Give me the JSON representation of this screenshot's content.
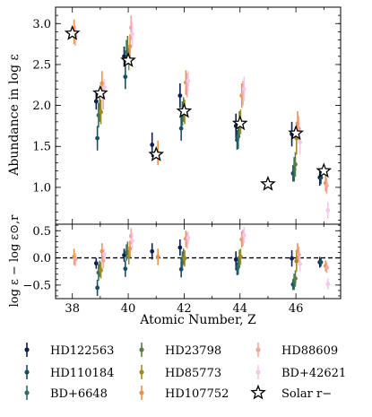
{
  "chart_data": [
    {
      "type": "scatter",
      "panel": "top",
      "xlabel": "",
      "ylabel": "Abundance in log ε",
      "xlim": [
        37.4,
        47.6
      ],
      "ylim": [
        0.55,
        3.2
      ],
      "yticks": [
        1.0,
        1.5,
        2.0,
        2.5,
        3.0
      ],
      "ytick_labels": [
        "1.0",
        "1.5",
        "2.0",
        "2.5",
        "3.0"
      ],
      "series": [
        {
          "name": "HD122563",
          "color": "#0f1f4f",
          "marker": "circle",
          "points": [
            [
              39,
              2.05,
              0.1
            ],
            [
              40,
              2.6,
              0.12
            ],
            [
              41,
              1.52,
              0.15
            ],
            [
              42,
              2.12,
              0.15
            ],
            [
              44,
              1.75,
              0.15
            ],
            [
              46,
              1.65,
              0.15
            ],
            [
              47,
              1.12,
              0.1
            ]
          ]
        },
        {
          "name": "HD110184",
          "color": "#1a4e62",
          "marker": "circle",
          "points": [
            [
              39,
              1.6,
              0.15
            ],
            [
              40,
              2.35,
              0.15
            ],
            [
              42,
              1.72,
              0.15
            ],
            [
              44,
              1.58,
              0.12
            ],
            [
              46,
              1.17,
              0.1
            ],
            [
              47,
              1.12,
              0.08
            ]
          ]
        },
        {
          "name": "BD+6648",
          "color": "#2e6e66",
          "marker": "circle",
          "points": [
            [
              39,
              1.88,
              0.15
            ],
            [
              40,
              2.65,
              0.15
            ],
            [
              42,
              1.9,
              0.15
            ],
            [
              44,
              1.62,
              0.15
            ],
            [
              46,
              1.22,
              0.15
            ]
          ]
        },
        {
          "name": "HD23798",
          "color": "#5e7d40",
          "marker": "circle",
          "points": [
            [
              39,
              1.95,
              0.15
            ],
            [
              40,
              2.7,
              0.15
            ],
            [
              42,
              1.95,
              0.15
            ],
            [
              44,
              1.78,
              0.15
            ],
            [
              46,
              1.28,
              0.15
            ]
          ]
        },
        {
          "name": "HD85773",
          "color": "#a48a1e",
          "marker": "circle",
          "points": [
            [
              39,
              1.92,
              0.15
            ],
            [
              40,
              2.58,
              0.15
            ],
            [
              42,
              1.92,
              0.15
            ],
            [
              44,
              1.8,
              0.15
            ],
            [
              46,
              1.6,
              0.2
            ]
          ]
        },
        {
          "name": "HD107752",
          "color": "#e8944d",
          "marker": "circle",
          "points": [
            [
              38,
              2.9,
              0.15
            ],
            [
              39,
              2.27,
              0.15
            ],
            [
              40,
              2.72,
              0.15
            ],
            [
              41,
              1.42,
              0.15
            ],
            [
              42,
              2.28,
              0.15
            ],
            [
              44,
              2.12,
              0.15
            ],
            [
              46,
              1.78,
              0.15
            ],
            [
              47,
              1.05,
              0.1
            ]
          ]
        },
        {
          "name": "HD88609",
          "color": "#f2a8a0",
          "marker": "circle",
          "points": [
            [
              38,
              2.85,
              0.12
            ],
            [
              39,
              2.1,
              0.15
            ],
            [
              40,
              2.95,
              0.15
            ],
            [
              42,
              2.25,
              0.15
            ],
            [
              44,
              2.15,
              0.15
            ],
            [
              46,
              1.72,
              0.15
            ],
            [
              47,
              1.02,
              0.1
            ]
          ]
        },
        {
          "name": "BD+42621",
          "color": "#f3c8ea",
          "marker": "circle",
          "points": [
            [
              39,
              2.22,
              0.1
            ],
            [
              40,
              2.87,
              0.15
            ],
            [
              42,
              2.3,
              0.12
            ],
            [
              44,
              2.2,
              0.15
            ],
            [
              46,
              1.55,
              0.15
            ],
            [
              47,
              0.72,
              0.1
            ]
          ]
        },
        {
          "name": "Solar r−",
          "color": "#000000",
          "marker": "star",
          "points": [
            [
              38,
              2.88,
              0
            ],
            [
              39,
              2.15,
              0
            ],
            [
              40,
              2.55,
              0
            ],
            [
              41,
              1.4,
              0
            ],
            [
              42,
              1.93,
              0
            ],
            [
              44,
              1.78,
              0
            ],
            [
              45,
              1.04,
              0
            ],
            [
              46,
              1.66,
              0
            ],
            [
              47,
              1.2,
              0
            ]
          ]
        }
      ]
    },
    {
      "type": "scatter",
      "panel": "bottom",
      "xlabel": "Atomic Number, Z",
      "ylabel": "log ε − log ε⊙,r",
      "xlim": [
        37.4,
        47.6
      ],
      "ylim": [
        -0.75,
        0.62
      ],
      "xticks": [
        38,
        40,
        42,
        44,
        46
      ],
      "xtick_labels": [
        "38",
        "40",
        "42",
        "44",
        "46"
      ],
      "yticks": [
        -0.5,
        0.0,
        0.5
      ],
      "ytick_labels": [
        "−0.5",
        "0.0",
        "0.5"
      ],
      "reference_line": 0.0,
      "series": [
        {
          "name": "HD122563",
          "color": "#0f1f4f",
          "points": [
            [
              39,
              -0.1,
              0.1
            ],
            [
              40,
              0.05,
              0.12
            ],
            [
              41,
              0.12,
              0.15
            ],
            [
              42,
              0.19,
              0.15
            ],
            [
              44,
              -0.03,
              0.15
            ],
            [
              46,
              -0.01,
              0.15
            ],
            [
              47,
              -0.08,
              0.1
            ]
          ]
        },
        {
          "name": "HD110184",
          "color": "#1a4e62",
          "points": [
            [
              39,
              -0.55,
              0.15
            ],
            [
              40,
              -0.2,
              0.15
            ],
            [
              42,
              -0.21,
              0.15
            ],
            [
              44,
              -0.2,
              0.12
            ],
            [
              46,
              -0.49,
              0.1
            ],
            [
              47,
              -0.08,
              0.08
            ]
          ]
        },
        {
          "name": "BD+6648",
          "color": "#2e6e66",
          "points": [
            [
              39,
              -0.27,
              0.15
            ],
            [
              40,
              0.1,
              0.15
            ],
            [
              42,
              -0.03,
              0.15
            ],
            [
              44,
              -0.16,
              0.15
            ],
            [
              46,
              -0.44,
              0.15
            ]
          ]
        },
        {
          "name": "HD23798",
          "color": "#5e7d40",
          "points": [
            [
              39,
              -0.2,
              0.15
            ],
            [
              40,
              0.15,
              0.15
            ],
            [
              42,
              0.02,
              0.15
            ],
            [
              44,
              0.0,
              0.15
            ],
            [
              46,
              -0.38,
              0.15
            ]
          ]
        },
        {
          "name": "HD85773",
          "color": "#a48a1e",
          "points": [
            [
              39,
              -0.23,
              0.15
            ],
            [
              40,
              0.03,
              0.15
            ],
            [
              42,
              -0.01,
              0.15
            ],
            [
              44,
              0.02,
              0.15
            ],
            [
              46,
              -0.06,
              0.2
            ]
          ]
        },
        {
          "name": "HD107752",
          "color": "#e8944d",
          "points": [
            [
              38,
              0.02,
              0.15
            ],
            [
              39,
              0.12,
              0.15
            ],
            [
              40,
              0.17,
              0.15
            ],
            [
              41,
              0.02,
              0.15
            ],
            [
              42,
              0.35,
              0.15
            ],
            [
              44,
              0.34,
              0.15
            ],
            [
              46,
              0.12,
              0.15
            ],
            [
              47,
              -0.15,
              0.1
            ]
          ]
        },
        {
          "name": "HD88609",
          "color": "#f2a8a0",
          "points": [
            [
              38,
              -0.03,
              0.12
            ],
            [
              39,
              -0.05,
              0.15
            ],
            [
              40,
              0.4,
              0.15
            ],
            [
              42,
              0.32,
              0.15
            ],
            [
              44,
              0.37,
              0.15
            ],
            [
              46,
              0.06,
              0.15
            ],
            [
              47,
              -0.18,
              0.1
            ]
          ]
        },
        {
          "name": "BD+42621",
          "color": "#f3c8ea",
          "points": [
            [
              39,
              0.07,
              0.1
            ],
            [
              40,
              0.32,
              0.15
            ],
            [
              42,
              0.37,
              0.12
            ],
            [
              44,
              0.42,
              0.15
            ],
            [
              46,
              -0.11,
              0.15
            ],
            [
              47,
              -0.48,
              0.1
            ]
          ]
        }
      ]
    }
  ],
  "legend": {
    "placement": "bottom",
    "entries": [
      {
        "label": "HD122563",
        "color": "#0f1f4f",
        "marker": "errorbar"
      },
      {
        "label": "HD110184",
        "color": "#1a4e62",
        "marker": "errorbar"
      },
      {
        "label": "BD+6648",
        "color": "#2e6e66",
        "marker": "errorbar"
      },
      {
        "label": "HD23798",
        "color": "#5e7d40",
        "marker": "errorbar"
      },
      {
        "label": "HD85773",
        "color": "#a48a1e",
        "marker": "errorbar"
      },
      {
        "label": "HD107752",
        "color": "#e8944d",
        "marker": "errorbar"
      },
      {
        "label": "HD88609",
        "color": "#f2a8a0",
        "marker": "errorbar"
      },
      {
        "label": "BD+42621",
        "color": "#f3c8ea",
        "marker": "errorbar"
      },
      {
        "label": "Solar r−",
        "color": "#000000",
        "marker": "star"
      }
    ]
  }
}
